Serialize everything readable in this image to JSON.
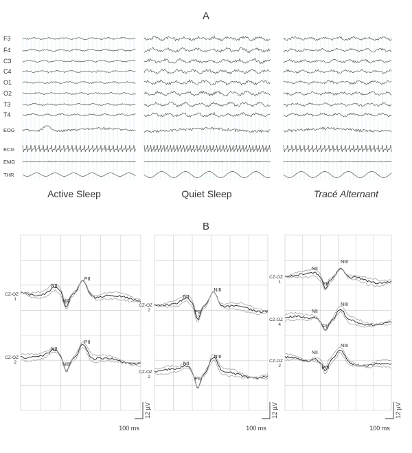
{
  "panel_a": {
    "letter": "A",
    "channels": [
      "F3",
      "F4",
      "C3",
      "C4",
      "O1",
      "O2",
      "T3",
      "T4",
      "EOG",
      "ECG",
      "EMG",
      "THR"
    ],
    "states": [
      {
        "label": "Active Sleep",
        "italic": false
      },
      {
        "label": "Quiet Sleep",
        "italic": false
      },
      {
        "label": "Tracé Alternant",
        "italic": true
      }
    ]
  },
  "panel_b": {
    "letter": "B",
    "amplitude_scale": "12 µV",
    "time_scale": "100 ms",
    "columns": [
      {
        "traces": [
          {
            "channel": "CZ-OZ",
            "index": "1",
            "peaks": [
              "NII",
              "NIII",
              "PII"
            ]
          },
          {
            "channel": "CZ-OZ",
            "index": "2",
            "peaks": [
              "NII",
              "NIII",
              "PII"
            ]
          }
        ]
      },
      {
        "traces": [
          {
            "channel": "CZ-OZ",
            "index": "2",
            "peaks": [
              "NII",
              "PII",
              "NIII"
            ]
          },
          {
            "channel": "CZ-OZ",
            "index": "2",
            "peaks": [
              "NII",
              "PII",
              "NIII"
            ]
          }
        ]
      },
      {
        "traces": [
          {
            "channel": "CZ-OZ",
            "index": "1",
            "peaks": [
              "NII",
              "PII",
              "NIII"
            ]
          },
          {
            "channel": "CZ-OZ",
            "index": "4",
            "peaks": [
              "NII",
              "PII",
              "NIII"
            ]
          },
          {
            "channel": "CZ-OZ",
            "index": "2",
            "peaks": [
              "NII",
              "PIII",
              "NIII"
            ]
          }
        ]
      }
    ]
  }
}
